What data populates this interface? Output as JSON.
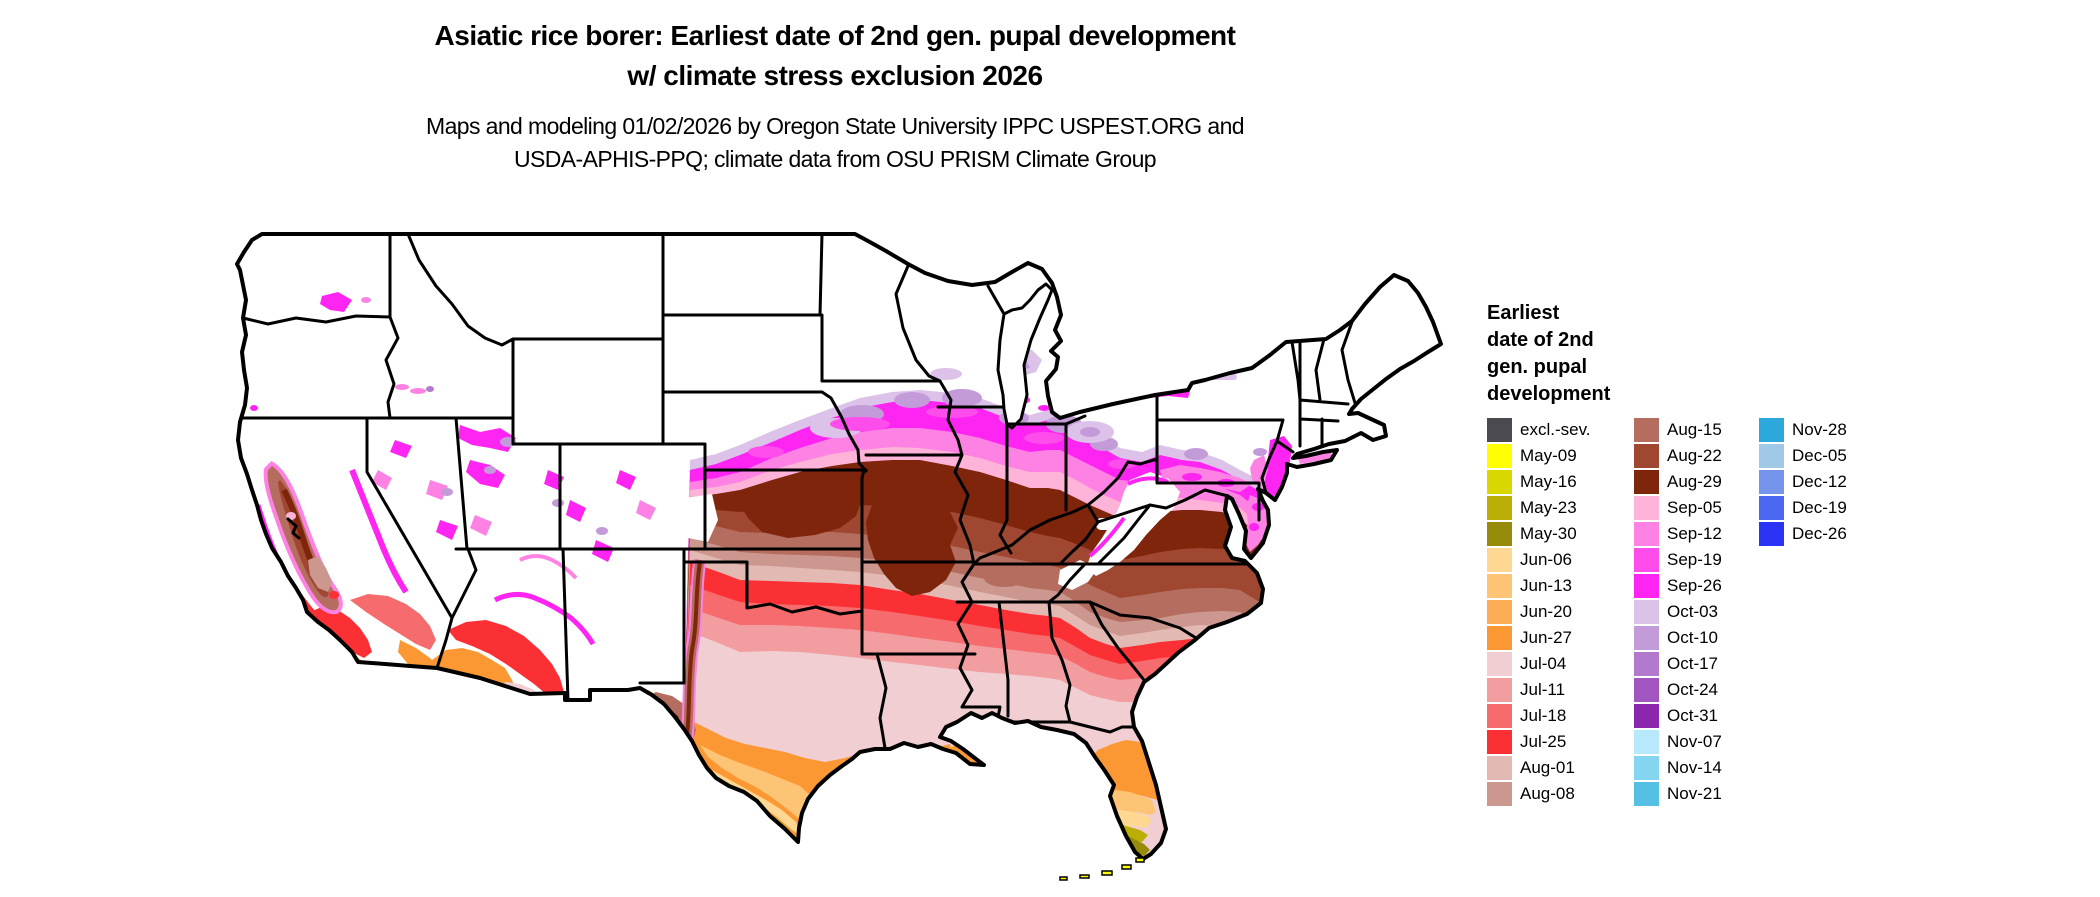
{
  "title": {
    "line1": "Asiatic rice borer: Earliest date of 2nd gen. pupal development",
    "line2": "w/ climate stress exclusion 2026"
  },
  "subtitle": {
    "line1": "Maps and modeling 01/02/2026 by Oregon State University IPPC USPEST.ORG and",
    "line2": "USDA-APHIS-PPQ; climate data from OSU PRISM Climate Group"
  },
  "legend": {
    "title_lines": [
      "Earliest",
      "date of 2nd",
      "gen. pupal",
      "development"
    ],
    "columns": [
      [
        {
          "label": "excl.-sev.",
          "color": "#4a4a50"
        },
        {
          "label": "May-09",
          "color": "#ffff00"
        },
        {
          "label": "May-16",
          "color": "#d8d800"
        },
        {
          "label": "May-23",
          "color": "#bbae06"
        },
        {
          "label": "May-30",
          "color": "#968b0a"
        },
        {
          "label": "Jun-06",
          "color": "#fed893"
        },
        {
          "label": "Jun-13",
          "color": "#fec475"
        },
        {
          "label": "Jun-20",
          "color": "#fcae57"
        },
        {
          "label": "Jun-27",
          "color": "#fb9833"
        },
        {
          "label": "Jul-04",
          "color": "#f1ced1"
        },
        {
          "label": "Jul-11",
          "color": "#f29da0"
        },
        {
          "label": "Jul-18",
          "color": "#f66b6d"
        },
        {
          "label": "Jul-25",
          "color": "#fa3034"
        },
        {
          "label": "Aug-01",
          "color": "#e2b9b3"
        },
        {
          "label": "Aug-08",
          "color": "#cc978e"
        }
      ],
      [
        {
          "label": "Aug-15",
          "color": "#b56d60"
        },
        {
          "label": "Aug-22",
          "color": "#a04731"
        },
        {
          "label": "Aug-29",
          "color": "#7f250b"
        },
        {
          "label": "Sep-05",
          "color": "#ffb3d9"
        },
        {
          "label": "Sep-12",
          "color": "#fe82e3"
        },
        {
          "label": "Sep-19",
          "color": "#fe4dea"
        },
        {
          "label": "Sep-26",
          "color": "#fe24f2"
        },
        {
          "label": "Oct-03",
          "color": "#dcc2e8"
        },
        {
          "label": "Oct-10",
          "color": "#c49bd9"
        },
        {
          "label": "Oct-17",
          "color": "#b279cc"
        },
        {
          "label": "Oct-24",
          "color": "#a155c0"
        },
        {
          "label": "Oct-31",
          "color": "#8b27ad"
        },
        {
          "label": "Nov-07",
          "color": "#b8e8fb"
        },
        {
          "label": "Nov-14",
          "color": "#85d5f0"
        },
        {
          "label": "Nov-21",
          "color": "#55bfe4"
        }
      ],
      [
        {
          "label": "Nov-28",
          "color": "#2da8da"
        },
        {
          "label": "Dec-05",
          "color": "#a2c8e8"
        },
        {
          "label": "Dec-12",
          "color": "#7694eb"
        },
        {
          "label": "Dec-19",
          "color": "#4b67ef"
        },
        {
          "label": "Dec-26",
          "color": "#2b34f6"
        }
      ]
    ]
  },
  "map": {
    "region": "Contiguous United States",
    "excluded_color": "#ffffff",
    "band_order_north_to_south": [
      "excluded (white)",
      "Oct-03/Oct-10 fringe",
      "Sep-26",
      "Sep-12",
      "Sep-05",
      "Aug-29",
      "Aug-22",
      "Aug-15",
      "Aug-08",
      "Aug-01",
      "Jul-25",
      "Jul-18",
      "Jul-11",
      "Jul-04",
      "Jun-27",
      "Jun-13",
      "Jun-06",
      "May-23",
      "May-30",
      "May-09 (FL Keys)"
    ]
  }
}
